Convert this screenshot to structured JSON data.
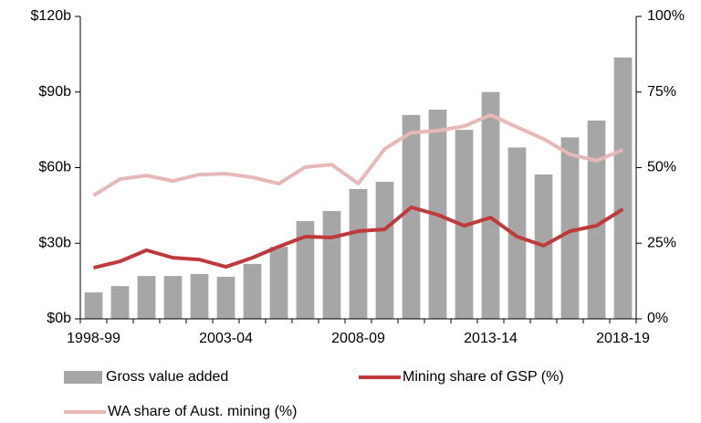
{
  "chart_data": {
    "type": "bar",
    "categories": [
      "1998-99",
      null,
      null,
      null,
      null,
      "2003-04",
      null,
      null,
      null,
      null,
      "2008-09",
      null,
      null,
      null,
      null,
      "2013-14",
      null,
      null,
      null,
      null,
      "2018-19"
    ],
    "series": [
      {
        "name": "Gross value added",
        "type": "bar",
        "color": "#a6a6a6",
        "values": [
          10.5,
          13,
          17,
          17,
          17.8,
          16.7,
          21.8,
          28.6,
          38.8,
          42.8,
          51.5,
          54.4,
          80.9,
          83,
          75,
          90,
          68,
          57.3,
          72,
          78.7,
          103.7
        ]
      },
      {
        "name": "Mining share of GSP (%)",
        "type": "line",
        "axis": "y2",
        "color": "#c0393b",
        "values": [
          16.9,
          19,
          22.7,
          20.2,
          19.6,
          17.2,
          20.2,
          23.9,
          27.2,
          26.9,
          29,
          29.6,
          36.9,
          34.4,
          30.8,
          33.5,
          27.2,
          24.2,
          29,
          30.8,
          36.3
        ]
      },
      {
        "name": "WA share of Aust. mining (%)",
        "type": "line",
        "axis": "y2",
        "color": "#e6b8b7",
        "values": [
          40.8,
          46.2,
          47.4,
          45.6,
          47.7,
          48,
          46.8,
          44.7,
          50.2,
          51,
          44.7,
          56.2,
          61.6,
          62.2,
          63.7,
          67.4,
          63.4,
          59.5,
          54.4,
          52.3,
          55.9
        ]
      }
    ],
    "ylim": [
      0,
      120
    ],
    "yticks": [
      {
        "value": 0,
        "label": "$0b"
      },
      {
        "value": 30,
        "label": "$30b"
      },
      {
        "value": 60,
        "label": "$60b"
      },
      {
        "value": 90,
        "label": "$90b"
      },
      {
        "value": 120,
        "label": "$120b"
      }
    ],
    "y2lim": [
      0,
      100
    ],
    "y2ticks": [
      {
        "value": 0,
        "label": "0%"
      },
      {
        "value": 25,
        "label": "25%"
      },
      {
        "value": 50,
        "label": "50%"
      },
      {
        "value": 75,
        "label": "75%"
      },
      {
        "value": 100,
        "label": "100%"
      }
    ],
    "grid": false
  }
}
